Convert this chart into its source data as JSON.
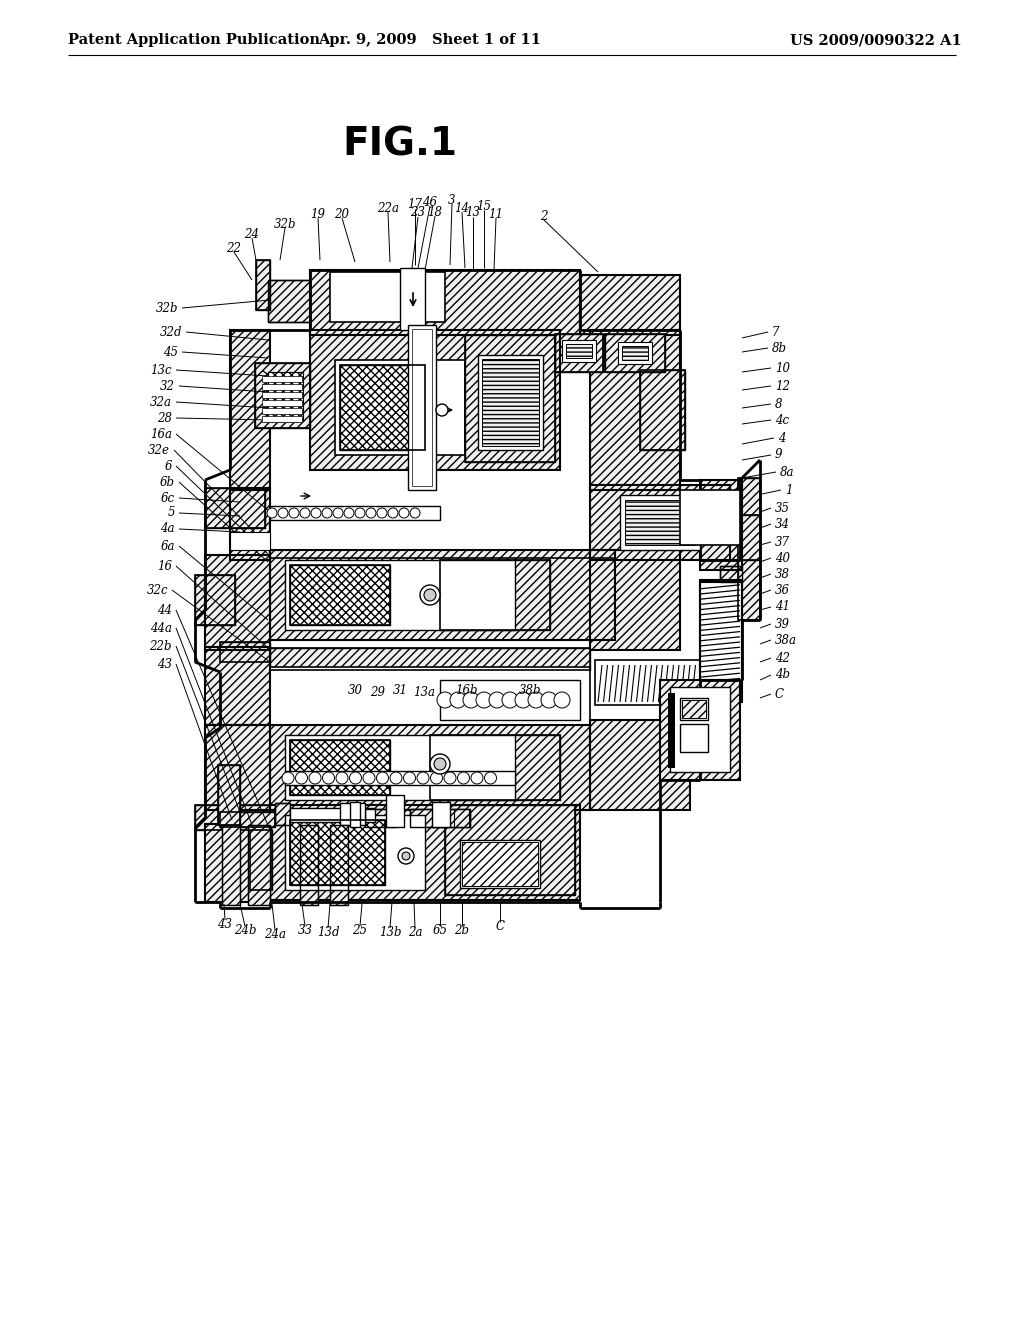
{
  "background_color": "#ffffff",
  "header_left": "Patent Application Publication",
  "header_center": "Apr. 9, 2009   Sheet 1 of 11",
  "header_right": "US 2009/0090322 A1",
  "figure_title": "FIG.1",
  "header_fontsize": 10.5,
  "title_fontsize": 28,
  "fig_width": 10.24,
  "fig_height": 13.2,
  "dpi": 100
}
